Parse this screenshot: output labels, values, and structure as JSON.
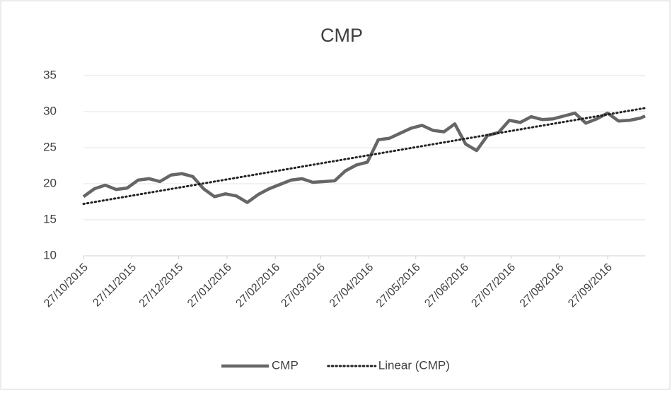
{
  "chart_data": {
    "type": "line",
    "title": "CMP",
    "xlim": [
      "2015-10-27",
      "2016-10-21"
    ],
    "xticks": [
      {
        "value": "2015-10-27",
        "label": "27/10/2015"
      },
      {
        "value": "2015-11-27",
        "label": "27/11/2015"
      },
      {
        "value": "2015-12-27",
        "label": "27/12/2015"
      },
      {
        "value": "2016-01-27",
        "label": "27/01/2016"
      },
      {
        "value": "2016-02-27",
        "label": "27/02/2016"
      },
      {
        "value": "2016-03-27",
        "label": "27/03/2016"
      },
      {
        "value": "2016-04-27",
        "label": "27/04/2016"
      },
      {
        "value": "2016-05-27",
        "label": "27/05/2016"
      },
      {
        "value": "2016-06-27",
        "label": "27/06/2016"
      },
      {
        "value": "2016-07-27",
        "label": "27/07/2016"
      },
      {
        "value": "2016-08-27",
        "label": "27/08/2016"
      },
      {
        "value": "2016-09-27",
        "label": "27/09/2016"
      }
    ],
    "ylim": [
      10,
      35
    ],
    "yticks": [
      10,
      15,
      20,
      25,
      30,
      35
    ],
    "grid": true,
    "legend": "bottom",
    "series": [
      {
        "name": "CMP",
        "color": "#666666",
        "line_style": "solid",
        "x": [
          "2015-10-27",
          "2015-11-03",
          "2015-11-10",
          "2015-11-17",
          "2015-11-24",
          "2015-12-01",
          "2015-12-08",
          "2015-12-15",
          "2015-12-22",
          "2015-12-29",
          "2016-01-05",
          "2016-01-12",
          "2016-01-19",
          "2016-01-26",
          "2016-02-02",
          "2016-02-09",
          "2016-02-16",
          "2016-02-23",
          "2016-03-01",
          "2016-03-08",
          "2016-03-15",
          "2016-03-22",
          "2016-03-29",
          "2016-04-05",
          "2016-04-12",
          "2016-04-19",
          "2016-04-26",
          "2016-05-03",
          "2016-05-10",
          "2016-05-17",
          "2016-05-24",
          "2016-05-31",
          "2016-06-07",
          "2016-06-14",
          "2016-06-21",
          "2016-06-28",
          "2016-07-05",
          "2016-07-12",
          "2016-07-19",
          "2016-07-26",
          "2016-08-02",
          "2016-08-09",
          "2016-08-16",
          "2016-08-23",
          "2016-08-30",
          "2016-09-06",
          "2016-09-13",
          "2016-09-20",
          "2016-09-27",
          "2016-10-04",
          "2016-10-11",
          "2016-10-18",
          "2016-10-21"
        ],
        "values": [
          18.2,
          19.3,
          19.8,
          19.2,
          19.4,
          20.5,
          20.7,
          20.3,
          21.2,
          21.4,
          21.0,
          19.3,
          18.2,
          18.6,
          18.3,
          17.4,
          18.5,
          19.3,
          19.9,
          20.5,
          20.7,
          20.2,
          20.3,
          20.4,
          21.8,
          22.6,
          23.0,
          26.1,
          26.3,
          27.0,
          27.7,
          28.1,
          27.4,
          27.2,
          28.3,
          25.5,
          24.6,
          26.7,
          27.1,
          28.8,
          28.5,
          29.3,
          28.9,
          29.0,
          29.4,
          29.8,
          28.4,
          29.0,
          29.8,
          28.7,
          28.8,
          29.1,
          29.4
        ]
      },
      {
        "name": "Linear (CMP)",
        "color": "#222222",
        "line_style": "dotted",
        "x": [
          "2015-10-27",
          "2016-10-21"
        ],
        "values": [
          17.2,
          30.5
        ]
      }
    ]
  }
}
